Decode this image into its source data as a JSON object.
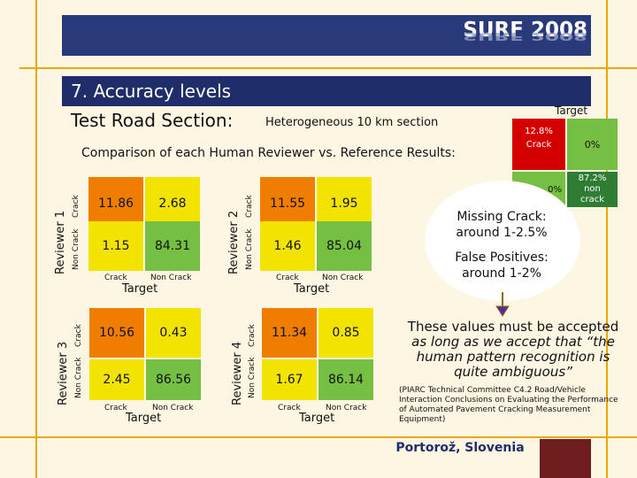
{
  "header": {
    "logo_text": "SURF 2008",
    "section_title": "7. Accuracy levels",
    "title": "Test Road Section:",
    "subtitle": "Heterogeneous 10 km section",
    "comparison": "Comparison of each Human Reviewer vs. Reference Results:"
  },
  "axis": {
    "crack": "Crack",
    "non_crack": "Non Crack",
    "target": "Target"
  },
  "matrices": [
    {
      "reviewer": "Reviewer 1",
      "values": [
        "11.86",
        "2.68",
        "1.15",
        "84.31"
      ]
    },
    {
      "reviewer": "Reviewer 2",
      "values": [
        "11.55",
        "1.95",
        "1.46",
        "85.04"
      ]
    },
    {
      "reviewer": "Reviewer 3",
      "values": [
        "10.56",
        "0.43",
        "2.45",
        "86.56"
      ]
    },
    {
      "reviewer": "Reviewer 4",
      "values": [
        "11.34",
        "0.85",
        "1.67",
        "86.14"
      ]
    }
  ],
  "target_box": {
    "label": "Target",
    "tl_value": "12.8%",
    "tl_label": "Crack",
    "tr_value": "0%",
    "bl_value": "0%",
    "br_value": "87.2%",
    "br_label1": "non",
    "br_label2": "crack"
  },
  "notes": {
    "missing_crack": "Missing Crack: around 1-2.5%",
    "false_positives": "False Positives: around 1-2%",
    "conclusion_line1": "These values must be accepted",
    "conclusion_line2": "as long as we accept that “the",
    "conclusion_line3": "human pattern recognition is",
    "conclusion_line4": "quite ambiguous”",
    "citation": "(PIARC Technical Committee C4.2 Road/Vehicle Interaction Conclusions on Evaluating the Performance of Automated Pavement Cracking Measurement Equipment)"
  },
  "footer": {
    "location": "Portorož, Slovenia"
  },
  "colors": {
    "navy": "#283a7a",
    "gold": "#e9a800",
    "orange": "#ef7d00",
    "red": "#d40000",
    "green_light": "#75c043",
    "green_dark": "#2f7d32",
    "yellow": "#f2e400",
    "brown": "#6e1e1e"
  }
}
